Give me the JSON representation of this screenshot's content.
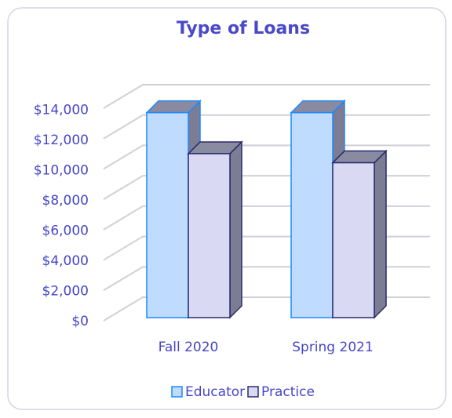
{
  "chart_data": {
    "type": "bar3d",
    "title": "Type of Loans",
    "categories": [
      "Fall 2020",
      "Spring 2021"
    ],
    "series": [
      {
        "name": "Educator",
        "color": "#bfdcff",
        "values": [
          13500,
          13500
        ]
      },
      {
        "name": "Practice",
        "color": "#d9d9f3",
        "values": [
          10800,
          10200
        ]
      }
    ],
    "ylim": [
      0,
      14000
    ],
    "yticks": [
      {
        "value": 0,
        "label": "$0"
      },
      {
        "value": 2000,
        "label": "$2,000"
      },
      {
        "value": 4000,
        "label": "$4,000"
      },
      {
        "value": 6000,
        "label": "$6,000"
      },
      {
        "value": 8000,
        "label": "$8,000"
      },
      {
        "value": 10000,
        "label": "$10,000"
      },
      {
        "value": 12000,
        "label": "$12,000"
      },
      {
        "value": 14000,
        "label": "$14,000"
      }
    ],
    "grid": true,
    "legend": "bottom"
  }
}
